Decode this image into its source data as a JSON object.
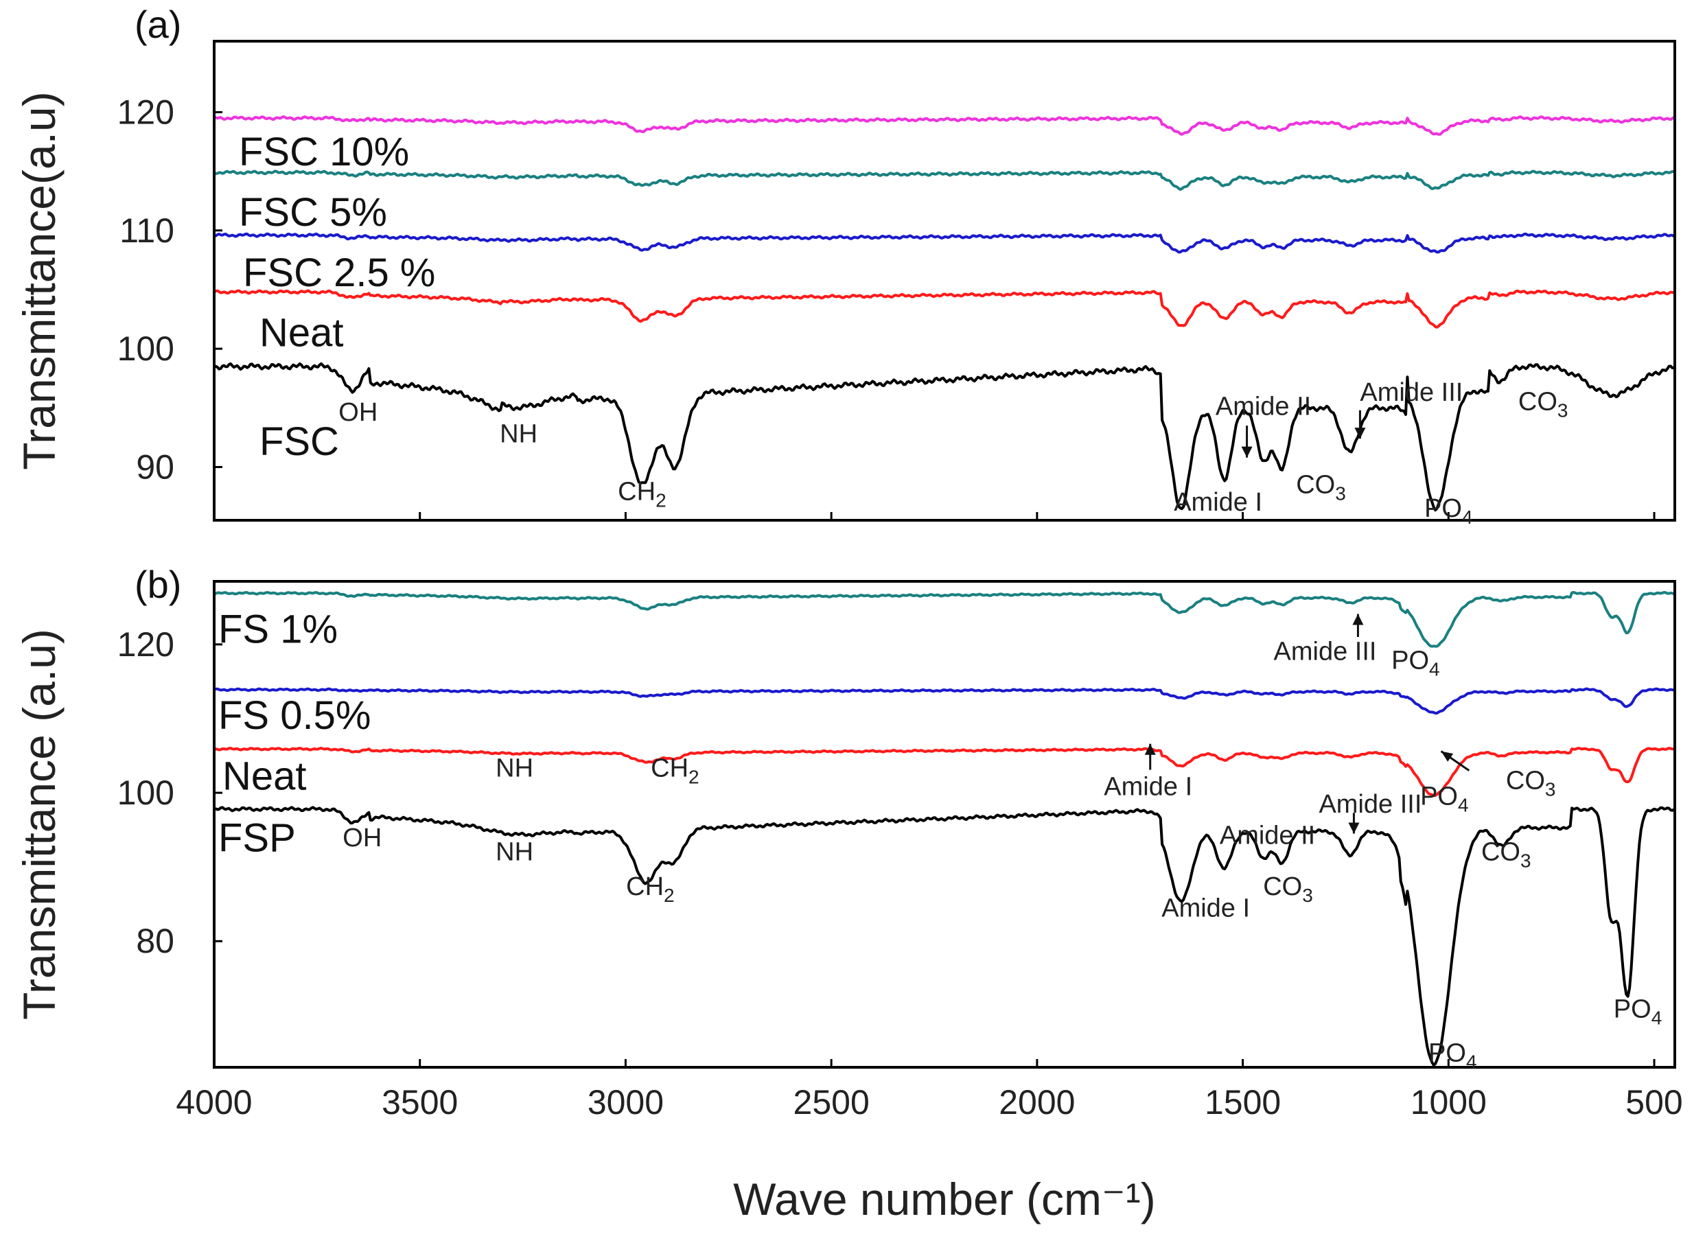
{
  "chart_data": [
    {
      "panel": "(a)",
      "type": "line",
      "xlabel": "",
      "ylabel": "Transmittance(a.u)",
      "xlim": [
        4000,
        450
      ],
      "ylim": [
        85.5,
        126
      ],
      "yticks": [
        90,
        100,
        110,
        120
      ],
      "xticks": [
        4000,
        3500,
        3000,
        2500,
        2000,
        1500,
        1000,
        500
      ],
      "show_xtick_labels": false,
      "series": [
        {
          "name": "FSC",
          "color": "#000000",
          "base": 98.5,
          "amp": 1.0,
          "label_at": [
            3890,
            91
          ],
          "label": "FSC"
        },
        {
          "name": "Neat",
          "color": "#ff1a1a",
          "base": 104.8,
          "amp": 0.24,
          "label_at": [
            3890,
            100.2
          ],
          "label": "Neat"
        },
        {
          "name": "FSC 2.5 %",
          "color": "#1a1acc",
          "base": 109.6,
          "amp": 0.12,
          "label_at": [
            3930,
            105.3
          ],
          "label": "FSC 2.5 %"
        },
        {
          "name": "FSC 5%",
          "color": "#1a8080",
          "base": 114.9,
          "amp": 0.11,
          "label_at": [
            3940,
            110.4
          ],
          "label": "FSC 5%"
        },
        {
          "name": "FSC 10%",
          "color": "#ee33dd",
          "base": 119.5,
          "amp": 0.11,
          "label_at": [
            3940,
            115.5
          ],
          "label": "FSC 10%"
        }
      ],
      "annotations": [
        {
          "text": "OH",
          "x": 3650,
          "y": 93.9
        },
        {
          "text": "NH",
          "x": 3260,
          "y": 92.1
        },
        {
          "text": "CH",
          "sub": "2",
          "x": 2960,
          "y": 87.2
        },
        {
          "text": "Amide II",
          "x": 1450,
          "y": 94.4
        },
        {
          "text": "Amide III",
          "x": 1090,
          "y": 95.6
        },
        {
          "text": "CO",
          "sub": "3",
          "x": 770,
          "y": 94.8
        },
        {
          "text": "Amide I",
          "x": 1560,
          "y": 86.3
        },
        {
          "text": "CO",
          "sub": "3",
          "x": 1310,
          "y": 87.8
        },
        {
          "text": "PO",
          "sub": "4",
          "x": 1000,
          "y": 85.8
        }
      ],
      "arrows": [
        {
          "x": 1490,
          "y_from": 93.5,
          "y_to": 90.8
        },
        {
          "x": 1215,
          "y_from": 94.8,
          "y_to": 92.4
        }
      ]
    },
    {
      "panel": "(b)",
      "type": "line",
      "xlabel": "Wave number (cm⁻¹)",
      "ylabel": "Transmittance (a.u)",
      "xlim": [
        4000,
        450
      ],
      "ylim": [
        63,
        128.5
      ],
      "yticks": [
        80,
        100,
        120
      ],
      "xticks": [
        4000,
        3500,
        3000,
        2500,
        2000,
        1500,
        1000,
        500
      ],
      "xtick_labels": [
        "4000",
        "3500",
        "3000",
        "2500",
        "2000",
        "1500",
        "1000",
        "500"
      ],
      "show_xtick_labels": true,
      "series": [
        {
          "name": "FSP",
          "color": "#000000",
          "base": 97.8,
          "amp": 1.0,
          "label_at": [
            3990,
            92.1
          ],
          "label": "FSP"
        },
        {
          "name": "Neat",
          "color": "#ff1a1a",
          "base": 105.9,
          "amp": 0.18,
          "label_at": [
            3980,
            100.4
          ],
          "label": "Neat"
        },
        {
          "name": "FS 0.5%",
          "color": "#1a1acc",
          "base": 113.9,
          "amp": 0.09,
          "label_at": [
            3990,
            108.6
          ],
          "label": "FS 0.5%"
        },
        {
          "name": "FS 1%",
          "color": "#1a8080",
          "base": 126.9,
          "amp": 0.21,
          "label_at": [
            3990,
            120.2
          ],
          "label": "FS 1%"
        }
      ],
      "annotations": [
        {
          "text": "OH",
          "x": 3640,
          "y": 92.8
        },
        {
          "text": "NH",
          "x": 3270,
          "y": 90.9
        },
        {
          "text": "CH",
          "sub": "2",
          "x": 2940,
          "y": 86.2
        },
        {
          "text": "Amide II",
          "x": 1440,
          "y": 93.1
        },
        {
          "text": "Amide III",
          "x": 1190,
          "y": 97.3
        },
        {
          "text": "CO",
          "sub": "3",
          "x": 1390,
          "y": 86.2
        },
        {
          "text": "CO",
          "sub": "3",
          "x": 860,
          "y": 90.9
        },
        {
          "text": "Amide I",
          "x": 1590,
          "y": 83.3
        },
        {
          "text": "PO",
          "sub": "4",
          "x": 990,
          "y": 63.8
        },
        {
          "text": "PO",
          "sub": "4",
          "x": 540,
          "y": 69.7
        },
        {
          "text": "NH",
          "x": 3270,
          "y": 102.2
        },
        {
          "text": "CH",
          "sub": "2",
          "x": 2880,
          "y": 102.2
        },
        {
          "text": "Amide I",
          "x": 1730,
          "y": 99.7
        },
        {
          "text": "PO",
          "sub": "4",
          "x": 1010,
          "y": 98.4
        },
        {
          "text": "CO",
          "sub": "3",
          "x": 800,
          "y": 100.5
        },
        {
          "text": "Amide III",
          "x": 1300,
          "y": 117.9
        },
        {
          "text": "PO",
          "sub": "4",
          "x": 1080,
          "y": 116.7
        }
      ],
      "arrows": [
        {
          "x": 1725,
          "y_from": 103.1,
          "y_to": 106.6
        },
        {
          "x": 1220,
          "y_from": 121.0,
          "y_to": 124.1
        },
        {
          "x": 1230,
          "y_from": 97.3,
          "y_to": 94.5
        }
      ],
      "slant_arrows": [
        {
          "x_from": 950,
          "y_from": 103.0,
          "x_to": 1018,
          "y_to": 105.6
        }
      ]
    }
  ]
}
